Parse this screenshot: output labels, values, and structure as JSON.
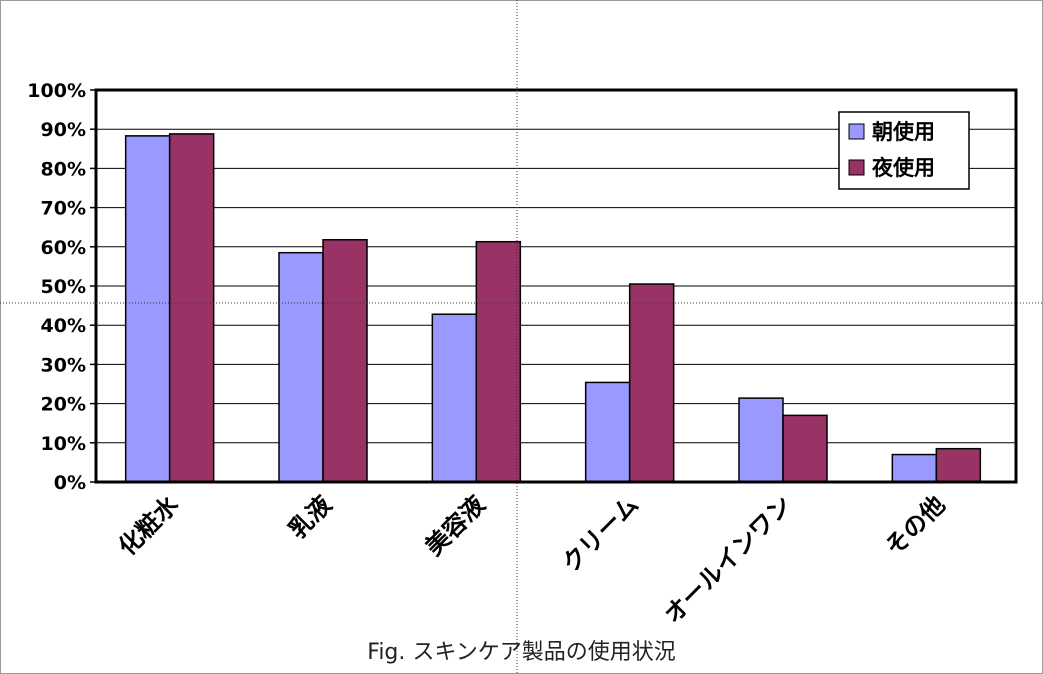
{
  "caption": "Fig.  スキンケア製品の使用状況",
  "colors": {
    "series_1": "#9999ff",
    "series_2": "#993366",
    "grid": "#000000"
  },
  "chart_data": {
    "type": "bar",
    "categories": [
      "化粧水",
      "乳液",
      "美容液",
      "クリーム",
      "オールインワン",
      "その他"
    ],
    "series": [
      {
        "name": "朝使用",
        "values": [
          88.3,
          58.5,
          42.8,
          25.4,
          21.4,
          7.0
        ]
      },
      {
        "name": "夜使用",
        "values": [
          88.8,
          61.8,
          61.3,
          50.5,
          17.0,
          8.5
        ]
      }
    ],
    "ylim": [
      0,
      100
    ],
    "yticks": [
      "0%",
      "10%",
      "20%",
      "30%",
      "40%",
      "50%",
      "60%",
      "70%",
      "80%",
      "90%",
      "100%"
    ],
    "grid": true,
    "legend": "top-right",
    "title": "",
    "xlabel": "",
    "ylabel": ""
  }
}
